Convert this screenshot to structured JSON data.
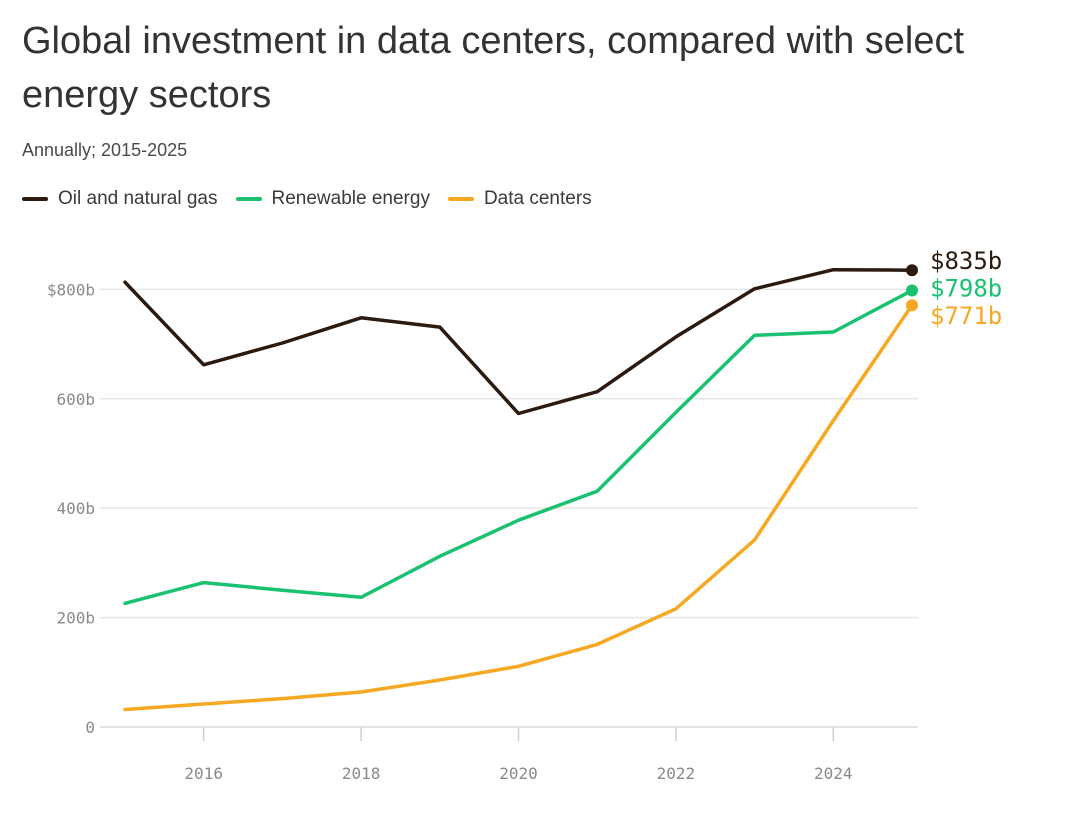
{
  "chart_data": {
    "type": "line",
    "title": "Global investment in data centers, compared with select energy sectors",
    "subtitle": "Annually; 2015-2025",
    "xlabel": "",
    "ylabel": "",
    "x": [
      2015,
      2016,
      2017,
      2018,
      2019,
      2020,
      2021,
      2022,
      2023,
      2024,
      2025
    ],
    "xlim": [
      2014.5,
      2025.2
    ],
    "ylim": [
      0,
      850
    ],
    "x_ticks": [
      {
        "value": 2016,
        "label": "2016"
      },
      {
        "value": 2018,
        "label": "2018"
      },
      {
        "value": 2020,
        "label": "2020"
      },
      {
        "value": 2022,
        "label": "2022"
      },
      {
        "value": 2024,
        "label": "2024"
      }
    ],
    "y_ticks": [
      {
        "value": 0,
        "label": "0"
      },
      {
        "value": 200,
        "label": "200b"
      },
      {
        "value": 400,
        "label": "400b"
      },
      {
        "value": 600,
        "label": "600b"
      },
      {
        "value": 800,
        "label": "$800b"
      }
    ],
    "grid": true,
    "legend_position": "top-left",
    "series": [
      {
        "key": "oil",
        "name": "Oil and natural gas",
        "color": "#2a1a10",
        "values": [
          813,
          662,
          702,
          748,
          731,
          573,
          613,
          713,
          801,
          836,
          835
        ],
        "end_label": "$835b"
      },
      {
        "key": "renewable",
        "name": "Renewable energy",
        "color": "#19c170",
        "values": [
          226,
          264,
          250,
          237,
          312,
          378,
          431,
          575,
          716,
          722,
          798
        ],
        "end_label": "$798b"
      },
      {
        "key": "datacenters",
        "name": "Data centers",
        "color": "#f7a823",
        "values": [
          32,
          42,
          52,
          64,
          86,
          111,
          151,
          216,
          342,
          560,
          771
        ],
        "end_label": "$771b"
      }
    ]
  }
}
